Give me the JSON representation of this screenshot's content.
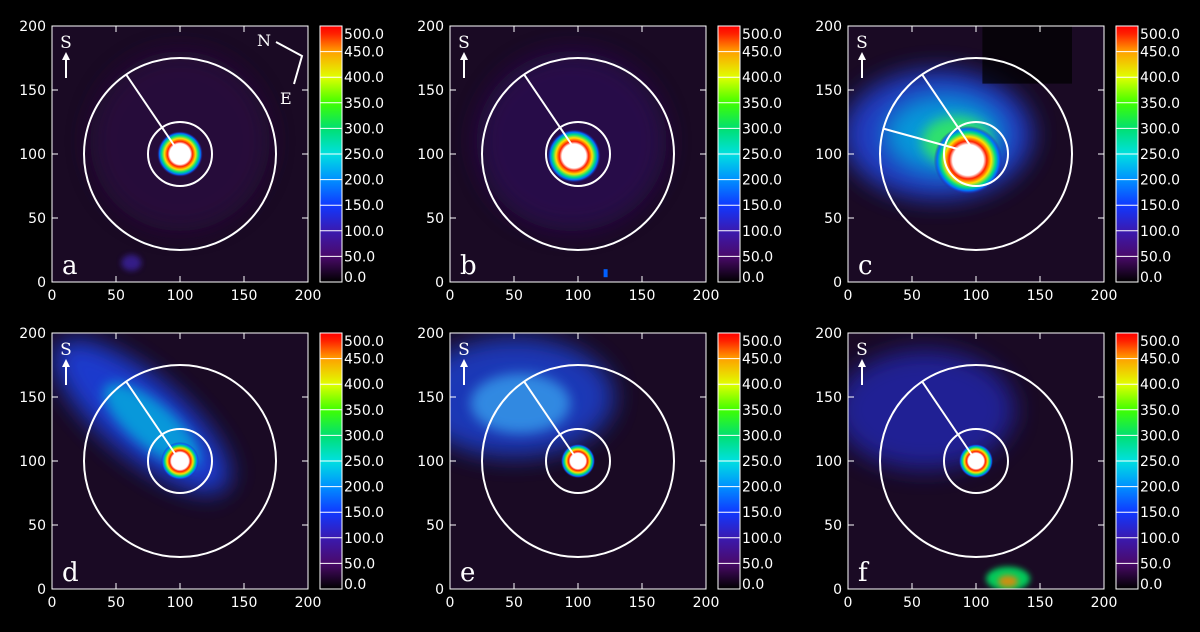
{
  "axis": {
    "x_ticks": [
      "0",
      "50",
      "100",
      "150",
      "200"
    ],
    "y_ticks": [
      "0",
      "50",
      "100",
      "150",
      "200"
    ],
    "range": [
      0,
      200
    ]
  },
  "colorbar": {
    "labels": [
      "500.0",
      "450.0",
      "400.0",
      "350.0",
      "300.0",
      "250.0",
      "200.0",
      "150.0",
      "100.0",
      "50.0",
      "0.0"
    ],
    "range": [
      0,
      500
    ],
    "colors": [
      "#1a0020",
      "#4a0a6a",
      "#3a1ab0",
      "#1038ff",
      "#0090ff",
      "#00e0e0",
      "#00e070",
      "#40ff00",
      "#e0ff00",
      "#ffa000",
      "#ff3000",
      "#ff0000"
    ]
  },
  "orientation": {
    "south_label": "S",
    "north_label": "N",
    "east_label": "E"
  },
  "circles": {
    "center": [
      100,
      100
    ],
    "inner_radius": 25,
    "outer_radius": 75
  },
  "panels": [
    {
      "label": "a"
    },
    {
      "label": "b"
    },
    {
      "label": "c"
    },
    {
      "label": "d"
    },
    {
      "label": "e"
    },
    {
      "label": "f"
    }
  ]
}
